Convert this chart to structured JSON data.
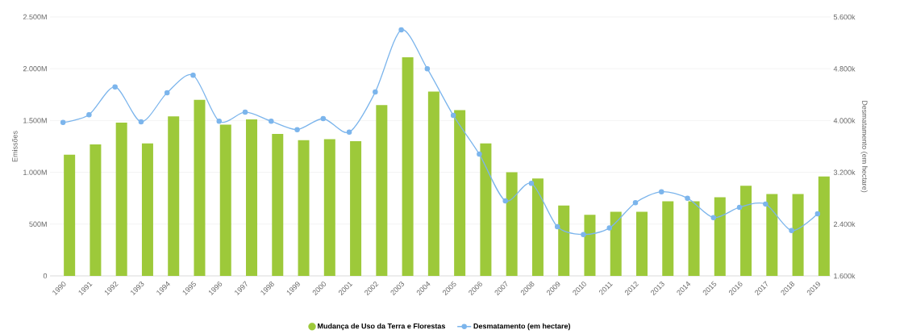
{
  "chart_data": {
    "type": "bar",
    "categories": [
      "1990",
      "1991",
      "1992",
      "1993",
      "1994",
      "1995",
      "1996",
      "1997",
      "1998",
      "1999",
      "2000",
      "2001",
      "2002",
      "2003",
      "2004",
      "2005",
      "2006",
      "2007",
      "2008",
      "2009",
      "2010",
      "2011",
      "2012",
      "2013",
      "2014",
      "2015",
      "2016",
      "2017",
      "2018",
      "2019"
    ],
    "series": [
      {
        "name": "Mudança de Uso da Terra e Florestas",
        "color": "#9dc93a",
        "values": [
          1170,
          1270,
          1480,
          1280,
          1540,
          1700,
          1460,
          1510,
          1370,
          1310,
          1320,
          1300,
          1650,
          2110,
          1780,
          1600,
          1280,
          1000,
          940,
          680,
          590,
          620,
          620,
          720,
          720,
          760,
          870,
          790,
          790,
          960
        ]
      },
      {
        "name": "Desmatamento (em hectare)",
        "type": "line",
        "axis": "y2",
        "color": "#7cb5ec",
        "values": [
          3970,
          4090,
          4520,
          3980,
          4430,
          4700,
          3990,
          4130,
          3990,
          3860,
          4030,
          3820,
          4440,
          5400,
          4800,
          4080,
          3480,
          2760,
          3030,
          2360,
          2240,
          2340,
          2730,
          2900,
          2800,
          2500,
          2660,
          2710,
          2300,
          2560
        ]
      }
    ],
    "ylabel": "Emissões",
    "y2label": "Desmatamento (em hectare)",
    "ylim": [
      0,
      2500
    ],
    "yticks": [
      {
        "value": 0,
        "label": "0"
      },
      {
        "value": 500,
        "label": "500M"
      },
      {
        "value": 1000,
        "label": "1.000M"
      },
      {
        "value": 1500,
        "label": "1.500M"
      },
      {
        "value": 2000,
        "label": "2.000M"
      },
      {
        "value": 2500,
        "label": "2.500M"
      }
    ],
    "y2lim": [
      1600,
      5600
    ],
    "y2ticks": [
      {
        "value": 1600,
        "label": "1.600k"
      },
      {
        "value": 2400,
        "label": "2.400k"
      },
      {
        "value": 3200,
        "label": "3.200k"
      },
      {
        "value": 4000,
        "label": "4.000k"
      },
      {
        "value": 4800,
        "label": "4.800k"
      },
      {
        "value": 5600,
        "label": "5.600k"
      }
    ],
    "grid": "y",
    "legend": "bottom",
    "marker": "circle"
  }
}
